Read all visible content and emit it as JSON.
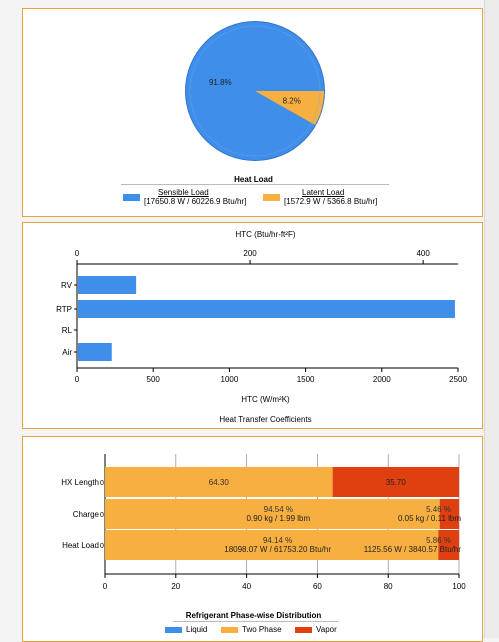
{
  "chart_data": [
    {
      "type": "pie",
      "title": "Heat Load",
      "slices": [
        {
          "name": "Sensible Load",
          "detail": "[17650.8 W / 60226.9 Btu/hr]",
          "percent": 91.8,
          "label": "91.8%",
          "color": "#3f8eea"
        },
        {
          "name": "Latent  Load",
          "detail": "[1572.9 W / 5366.8 Btu/hr]",
          "percent": 8.2,
          "label": "8.2%",
          "color": "#f7b040"
        }
      ]
    },
    {
      "type": "bar",
      "orientation": "horizontal",
      "title": "Heat Transfer Coefficients",
      "xlabel": "HTC (W/m²K)",
      "x2label": "HTC (Btu/hr-ft²F)",
      "categories": [
        "RV",
        "RTP",
        "RL",
        "Air"
      ],
      "values": [
        388,
        2480,
        0,
        228
      ],
      "xlim": [
        0,
        2500
      ],
      "x_ticks": [
        "0",
        "500",
        "1000",
        "1500",
        "2000",
        "2500"
      ],
      "x2_ticks": [
        "0",
        "200",
        "400"
      ],
      "color": "#3f8eea"
    },
    {
      "type": "bar",
      "orientation": "horizontal",
      "stacked": true,
      "title": "Refrigerant Phase-wise Distribution",
      "categories": [
        "HX Length",
        "Charge",
        "Heat Load"
      ],
      "xlim": [
        0,
        100
      ],
      "x_ticks": [
        "0",
        "20",
        "40",
        "60",
        "80",
        "100"
      ],
      "series": [
        {
          "name": "Liquid",
          "color": "#3f8eea",
          "values": [
            0,
            0,
            0
          ],
          "labels": [
            "",
            "",
            ""
          ]
        },
        {
          "name": "Two Phase",
          "color": "#f7b040",
          "values": [
            64.3,
            94.54,
            94.14
          ],
          "labels": [
            [
              "64.30"
            ],
            [
              "94.54 %",
              "0.90 kg / 1.99 lbm"
            ],
            [
              "94.14 %",
              "18098.07 W / 61753.20 Btu/hr"
            ]
          ]
        },
        {
          "name": "Vapor",
          "color": "#e04010",
          "values": [
            35.7,
            5.46,
            5.86
          ],
          "labels": [
            [
              "35.70"
            ],
            [
              "5.46 %",
              "0.05 kg / 0.11 lbm"
            ],
            [
              "5.86 %",
              "1125.56 W / 3840.57 Btu/hr"
            ]
          ]
        }
      ]
    }
  ]
}
